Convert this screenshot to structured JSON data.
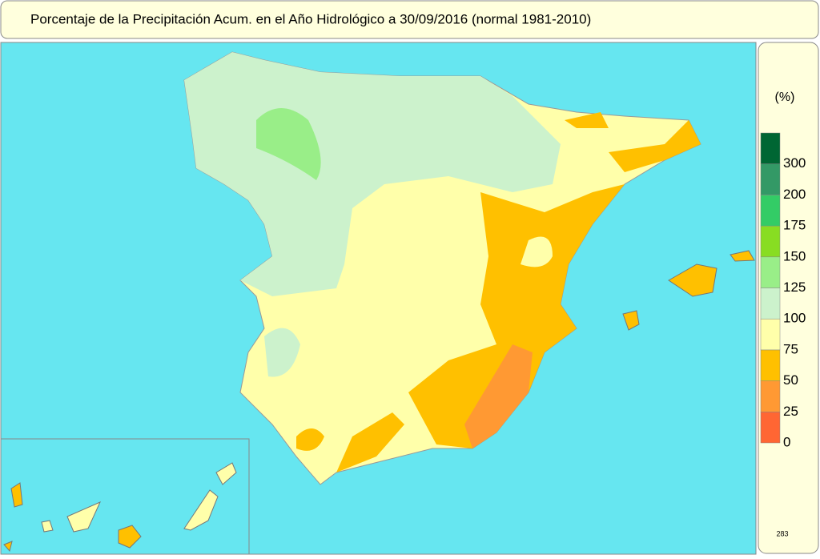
{
  "header": {
    "title": "Porcentaje de la Precipitación Acum. en el Año Hidrológico a 30/09/2016  (normal 1981-2010)"
  },
  "legend": {
    "unit": "(%)",
    "ticks": [
      0,
      25,
      50,
      75,
      100,
      125,
      150,
      175,
      200,
      300
    ],
    "colors": [
      "#ff6633",
      "#ff9933",
      "#ffc000",
      "#ffffaa",
      "#ccf2cc",
      "#99ee88",
      "#88dd22",
      "#33cc66",
      "#339966",
      "#006633"
    ]
  },
  "footer": {
    "code": "283"
  }
}
